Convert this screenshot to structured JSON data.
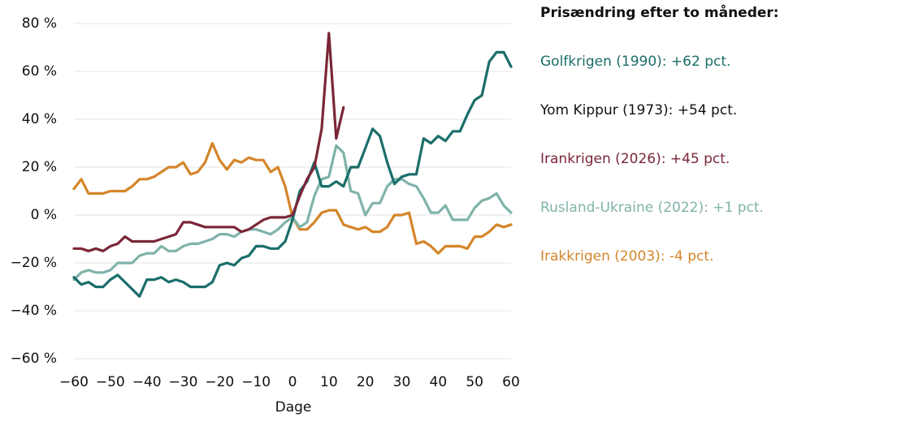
{
  "chart_data": {
    "type": "line",
    "x_label": "Dage",
    "x": [
      -60,
      -58,
      -56,
      -54,
      -52,
      -50,
      -48,
      -46,
      -44,
      -42,
      -40,
      -38,
      -36,
      -34,
      -32,
      -30,
      -28,
      -26,
      -24,
      -22,
      -20,
      -18,
      -16,
      -14,
      -12,
      -10,
      -8,
      -6,
      -4,
      -2,
      0,
      2,
      4,
      6,
      8,
      10,
      12,
      14,
      16,
      18,
      20,
      22,
      24,
      26,
      28,
      30,
      32,
      34,
      36,
      38,
      40,
      42,
      44,
      46,
      48,
      50,
      52,
      54,
      56,
      58,
      60
    ],
    "xlim": [
      -60,
      60
    ],
    "xticks": [
      {
        "value": -60,
        "label": "−60"
      },
      {
        "value": -50,
        "label": "−50"
      },
      {
        "value": -40,
        "label": "−40"
      },
      {
        "value": -30,
        "label": "−30"
      },
      {
        "value": -20,
        "label": "−20"
      },
      {
        "value": -10,
        "label": "−10"
      },
      0,
      10,
      20,
      30,
      40,
      50,
      60
    ],
    "ylim": [
      -60,
      80
    ],
    "yticks": [
      {
        "value": -60,
        "label": "−60 %"
      },
      {
        "value": -40,
        "label": "−40 %"
      },
      {
        "value": -20,
        "label": "−20 %"
      },
      {
        "value": 0,
        "label": "0 %"
      },
      {
        "value": 20,
        "label": "20 %"
      },
      {
        "value": 40,
        "label": "40 %"
      },
      {
        "value": 60,
        "label": "60 %"
      },
      {
        "value": 80,
        "label": "80 %"
      }
    ],
    "grid": true,
    "legend_title": "Prisændring efter to måneder:",
    "legend": [
      {
        "text": "Golfkrigen (1990): +62 pct.",
        "color": "#1a6e6a"
      },
      {
        "text": "Yom Kippur (1973): +54 pct.",
        "color": "#111111"
      },
      {
        "text": "Irankrigen (2026): +45 pct.",
        "color": "#7a2638"
      },
      {
        "text": "Rusland-Ukraine (2022): +1 pct.",
        "color": "#7fb3aa"
      },
      {
        "text": "Irakkrigen (2003): -4 pct.",
        "color": "#d4862a"
      }
    ],
    "series": [
      {
        "color": "#d4862a",
        "values": [
          11,
          15,
          9,
          9,
          9,
          10,
          10,
          10,
          12,
          15,
          15,
          16,
          18,
          20,
          20,
          22,
          17,
          18,
          22,
          30,
          23,
          19,
          23,
          22,
          24,
          23,
          23,
          18,
          20,
          12,
          -1,
          -6,
          -6,
          -3,
          1,
          2,
          2,
          -4,
          -5,
          -6,
          -5,
          -7,
          -7,
          -5,
          0,
          0,
          1,
          -12,
          -11,
          -13,
          -16,
          -13,
          -13,
          -13,
          -14,
          -9,
          -9,
          -7,
          -4,
          -5,
          -4
        ]
      },
      {
        "color": "#7fb3aa",
        "values": [
          -27,
          -24,
          -23,
          -24,
          -24,
          -23,
          -20,
          -20,
          -20,
          -17,
          -16,
          -16,
          -13,
          -15,
          -15,
          -13,
          -12,
          -12,
          -11,
          -10,
          -8,
          -8,
          -9,
          -7,
          -6,
          -6,
          -7,
          -8,
          -6,
          -3,
          -1,
          -5,
          -3,
          8,
          15,
          16,
          29,
          26,
          10,
          9,
          0,
          5,
          5,
          12,
          15,
          15,
          13,
          12,
          7,
          1,
          1,
          4,
          -2,
          -2,
          -2,
          3,
          6,
          7,
          9,
          4,
          1
        ]
      },
      {
        "color": "#1a6e6a",
        "values": [
          -26,
          -29,
          -28,
          -30,
          -30,
          -27,
          -25,
          -28,
          -31,
          -34,
          -27,
          -27,
          -26,
          -28,
          -27,
          -28,
          -30,
          -30,
          -30,
          -28,
          -21,
          -20,
          -21,
          -18,
          -17,
          -13,
          -13,
          -14,
          -14,
          -11,
          -2,
          10,
          14,
          22,
          12,
          12,
          14,
          12,
          20,
          20,
          28,
          36,
          33,
          22,
          13,
          16,
          17,
          17,
          32,
          30,
          33,
          31,
          35,
          35,
          42,
          48,
          50,
          64,
          68,
          68,
          62
        ]
      },
      {
        "color": "#7a2638",
        "values": [
          -14,
          -14,
          -15,
          -14,
          -15,
          -13,
          -12,
          -9,
          -11,
          -11,
          -11,
          -11,
          -10,
          -9,
          -8,
          -3,
          -3,
          -4,
          -5,
          -5,
          -5,
          -5,
          -5,
          -7,
          -6,
          -4,
          -2,
          -1,
          -1,
          -1,
          0,
          8,
          15,
          20,
          36,
          76,
          32,
          45,
          null,
          null,
          null,
          null,
          null,
          null,
          null,
          null,
          null,
          null,
          null,
          null,
          null,
          null,
          null,
          null,
          null,
          null,
          null,
          null,
          null,
          null,
          null
        ]
      }
    ]
  }
}
